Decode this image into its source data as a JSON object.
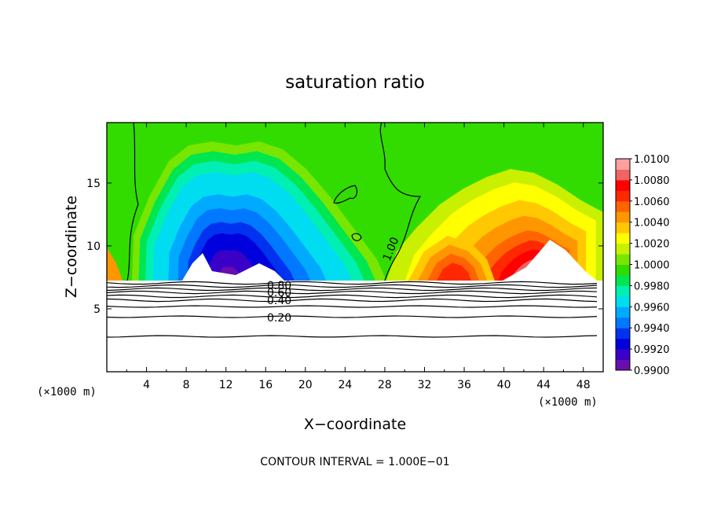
{
  "chart_data": {
    "type": "heatmap",
    "title": "saturation ratio",
    "xlabel": "X−coordinate",
    "ylabel": "Z−coordinate",
    "x_unit": "(×1000 m)",
    "z_unit": "(×1000 m)",
    "xlim": [
      0,
      50
    ],
    "ylim": [
      0,
      19.8
    ],
    "x_ticks": [
      4,
      8,
      12,
      16,
      20,
      24,
      28,
      32,
      36,
      40,
      44,
      48
    ],
    "x_tick_labels": [
      "4",
      "8",
      "12",
      "16",
      "20",
      "24",
      "28",
      "32",
      "36",
      "40",
      "44",
      "48"
    ],
    "y_ticks": [
      5,
      10,
      15
    ],
    "y_tick_labels": [
      "5",
      "10",
      "15"
    ],
    "colorbar": {
      "min": 0.99,
      "max": 1.01,
      "labels": [
        "1.0100",
        "1.0080",
        "1.0060",
        "1.0040",
        "1.0020",
        "1.0000",
        "0.9980",
        "0.9960",
        "0.9940",
        "0.9920",
        "0.9900"
      ],
      "colors": [
        "#6a0dad",
        "#3b00c8",
        "#0000dc",
        "#0032f0",
        "#0078ff",
        "#00aaff",
        "#00dcf0",
        "#00f0b4",
        "#00e650",
        "#32dc00",
        "#78e600",
        "#c8f000",
        "#ffff00",
        "#ffc800",
        "#ff9600",
        "#ff6400",
        "#ff2800",
        "#ff0000",
        "#f06464",
        "#ffa0a0"
      ]
    },
    "contour_labels": [
      "1.00",
      "0.80",
      "0.60",
      "0.40",
      "0.20"
    ],
    "contour_levels": [
      0.2,
      0.4,
      0.6,
      0.8,
      1.0
    ],
    "base_level_z": 7.2,
    "footer": "CONTOUR INTERVAL = 1.000E−01"
  }
}
